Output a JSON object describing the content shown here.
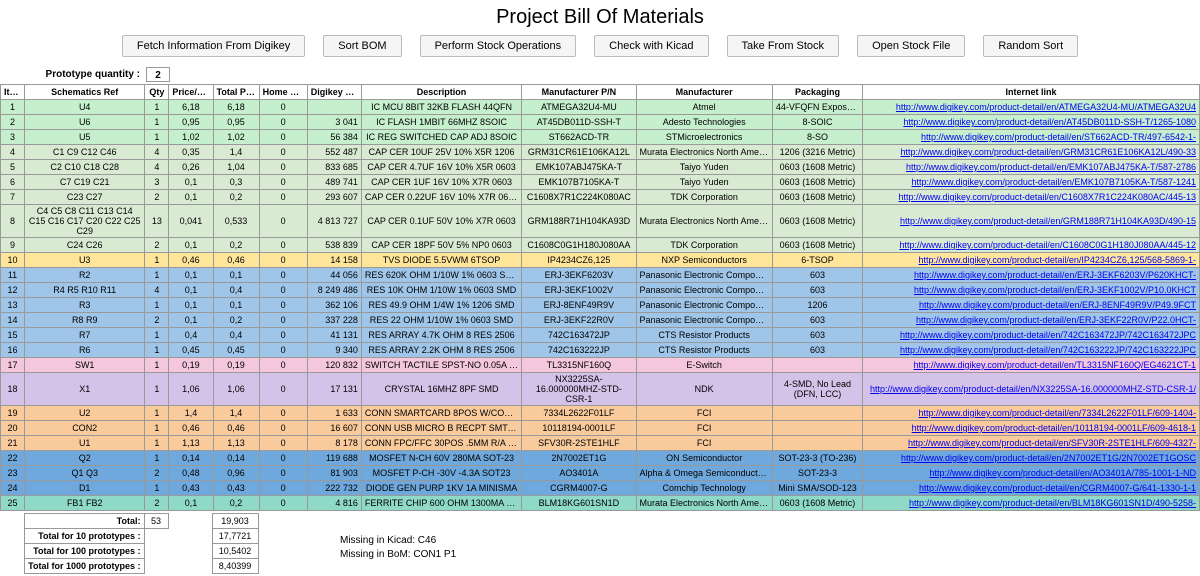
{
  "title": "Project Bill Of Materials",
  "toolbar": {
    "fetch": "Fetch Information From Digikey",
    "sort": "Sort BOM",
    "stockops": "Perform Stock Operations",
    "kicad": "Check with Kicad",
    "take": "Take From Stock",
    "open": "Open Stock File",
    "random": "Random Sort"
  },
  "proto_qty_label": "Prototype quantity :",
  "proto_qty_value": "2",
  "headers": {
    "item": "Item",
    "ref": "Schematics Ref",
    "qty": "Qty",
    "price": "Price/chip",
    "total": "Total Price",
    "home": "Home Stock",
    "dkstock": "Digikey Stock",
    "desc": "Description",
    "mpn": "Manufacturer P/N",
    "mfr": "Manufacturer",
    "pkg": "Packaging",
    "link": "Internet link"
  },
  "col_widths": {
    "item": 24,
    "ref": 120,
    "qty": 24,
    "price": 44,
    "total": 46,
    "home": 48,
    "dkstock": 54,
    "desc": 160,
    "mpn": 114,
    "mfr": 136,
    "pkg": 90,
    "link": 336
  },
  "row_colors": {
    "green": "#c6efce",
    "lightgreen": "#d9ead3",
    "teal": "#8fd9c7",
    "yellow": "#ffe599",
    "blue": "#9fc5e8",
    "purple": "#d5c2e8",
    "orange": "#f9cb9c",
    "pink": "#f4c7dc",
    "darkblue": "#6fa8dc",
    "darkerblue": "#5b9bd5"
  },
  "rows": [
    {
      "n": "1",
      "ref": "U4",
      "qty": "1",
      "price": "6,18",
      "total": "6,18",
      "home": "0",
      "dk": "",
      "desc": "IC MCU 8BIT 32KB FLASH 44QFN",
      "mpn": "ATMEGA32U4-MU",
      "mfr": "Atmel",
      "pkg": "44-VFQFN Exposed Pad",
      "link": "http://www.digikey.com/product-detail/en/ATMEGA32U4-MU/ATMEGA32U4",
      "c": "green"
    },
    {
      "n": "2",
      "ref": "U6",
      "qty": "1",
      "price": "0,95",
      "total": "0,95",
      "home": "0",
      "dk": "3 041",
      "desc": "IC FLASH 1MBIT 66MHZ 8SOIC",
      "mpn": "AT45DB011D-SSH-T",
      "mfr": "Adesto Technologies",
      "pkg": "8-SOIC",
      "link": "http://www.digikey.com/product-detail/en/AT45DB011D-SSH-T/1265-1080",
      "c": "green"
    },
    {
      "n": "3",
      "ref": "U5",
      "qty": "1",
      "price": "1,02",
      "total": "1,02",
      "home": "0",
      "dk": "56 384",
      "desc": "IC REG SWITCHED CAP ADJ 8SOIC",
      "mpn": "ST662ACD-TR",
      "mfr": "STMicroelectronics",
      "pkg": "8-SO",
      "link": "http://www.digikey.com/product-detail/en/ST662ACD-TR/497-6542-1-",
      "c": "green"
    },
    {
      "n": "4",
      "ref": "C1 C9 C12 C46",
      "qty": "4",
      "price": "0,35",
      "total": "1,4",
      "home": "0",
      "dk": "552 487",
      "desc": "CAP CER 10UF 25V 10% X5R 1206",
      "mpn": "GRM31CR61E106KA12L",
      "mfr": "Murata Electronics North America",
      "pkg": "1206 (3216 Metric)",
      "link": "http://www.digikey.com/product-detail/en/GRM31CR61E106KA12L/490-33",
      "c": "lightgreen"
    },
    {
      "n": "5",
      "ref": "C2 C10 C18 C28",
      "qty": "4",
      "price": "0,26",
      "total": "1,04",
      "home": "0",
      "dk": "833 685",
      "desc": "CAP CER 4.7UF 16V 10% X5R 0603",
      "mpn": "EMK107ABJ475KA-T",
      "mfr": "Taiyo Yuden",
      "pkg": "0603 (1608 Metric)",
      "link": "http://www.digikey.com/product-detail/en/EMK107ABJ475KA-T/587-2786",
      "c": "lightgreen"
    },
    {
      "n": "6",
      "ref": "C7 C19 C21",
      "qty": "3",
      "price": "0,1",
      "total": "0,3",
      "home": "0",
      "dk": "489 741",
      "desc": "CAP CER 1UF 16V 10% X7R 0603",
      "mpn": "EMK107B7105KA-T",
      "mfr": "Taiyo Yuden",
      "pkg": "0603 (1608 Metric)",
      "link": "http://www.digikey.com/product-detail/en/EMK107B7105KA-T/587-1241",
      "c": "lightgreen"
    },
    {
      "n": "7",
      "ref": "C23 C27",
      "qty": "2",
      "price": "0,1",
      "total": "0,2",
      "home": "0",
      "dk": "293 607",
      "desc": "CAP CER 0.22UF 16V 10% X7R 0603",
      "mpn": "C1608X7R1C224K080AC",
      "mfr": "TDK Corporation",
      "pkg": "0603 (1608 Metric)",
      "link": "http://www.digikey.com/product-detail/en/C1608X7R1C224K080AC/445-13",
      "c": "lightgreen"
    },
    {
      "n": "8",
      "ref": "C4 C5 C8 C11 C13 C14 C15 C16 C17 C20 C22 C25 C29",
      "qty": "13",
      "price": "0,041",
      "total": "0,533",
      "home": "0",
      "dk": "4 813 727",
      "desc": "CAP CER 0.1UF 50V 10% X7R 0603",
      "mpn": "GRM188R71H104KA93D",
      "mfr": "Murata Electronics North America",
      "pkg": "0603 (1608 Metric)",
      "link": "http://www.digikey.com/product-detail/en/GRM188R71H104KA93D/490-15",
      "c": "lightgreen",
      "tall": true
    },
    {
      "n": "9",
      "ref": "C24 C26",
      "qty": "2",
      "price": "0,1",
      "total": "0,2",
      "home": "0",
      "dk": "538 839",
      "desc": "CAP CER 18PF 50V 5% NP0 0603",
      "mpn": "C1608C0G1H180J080AA",
      "mfr": "TDK Corporation",
      "pkg": "0603 (1608 Metric)",
      "link": "http://www.digikey.com/product-detail/en/C1608C0G1H180J080AA/445-12",
      "c": "lightgreen"
    },
    {
      "n": "10",
      "ref": "U3",
      "qty": "1",
      "price": "0,46",
      "total": "0,46",
      "home": "0",
      "dk": "14 158",
      "desc": "TVS DIODE 5.5VWM 6TSOP",
      "mpn": "IP4234CZ6,125",
      "mfr": "NXP Semiconductors",
      "pkg": "6-TSOP",
      "link": "http://www.digikey.com/product-detail/en/IP4234CZ6,125/568-5869-1-",
      "c": "yellow"
    },
    {
      "n": "11",
      "ref": "R2",
      "qty": "1",
      "price": "0,1",
      "total": "0,1",
      "home": "0",
      "dk": "44 056",
      "desc": "RES 620K OHM 1/10W 1% 0603 SMD",
      "mpn": "ERJ-3EKF6203V",
      "mfr": "Panasonic Electronic Components",
      "pkg": "603",
      "link": "http://www.digikey.com/product-detail/en/ERJ-3EKF6203V/P620KHCT-",
      "c": "blue"
    },
    {
      "n": "12",
      "ref": "R4 R5 R10 R11",
      "qty": "4",
      "price": "0,1",
      "total": "0,4",
      "home": "0",
      "dk": "8 249 486",
      "desc": "RES 10K OHM 1/10W 1% 0603 SMD",
      "mpn": "ERJ-3EKF1002V",
      "mfr": "Panasonic Electronic Components",
      "pkg": "603",
      "link": "http://www.digikey.com/product-detail/en/ERJ-3EKF1002V/P10.0KHCT",
      "c": "blue"
    },
    {
      "n": "13",
      "ref": "R3",
      "qty": "1",
      "price": "0,1",
      "total": "0,1",
      "home": "0",
      "dk": "362 106",
      "desc": "RES 49.9 OHM 1/4W 1% 1206 SMD",
      "mpn": "ERJ-8ENF49R9V",
      "mfr": "Panasonic Electronic Components",
      "pkg": "1206",
      "link": "http://www.digikey.com/product-detail/en/ERJ-8ENF49R9V/P49.9FCT",
      "c": "blue"
    },
    {
      "n": "14",
      "ref": "R8 R9",
      "qty": "2",
      "price": "0,1",
      "total": "0,2",
      "home": "0",
      "dk": "337 228",
      "desc": "RES 22 OHM 1/10W 1% 0603 SMD",
      "mpn": "ERJ-3EKF22R0V",
      "mfr": "Panasonic Electronic Components",
      "pkg": "603",
      "link": "http://www.digikey.com/product-detail/en/ERJ-3EKF22R0V/P22.0HCT-",
      "c": "blue"
    },
    {
      "n": "15",
      "ref": "R7",
      "qty": "1",
      "price": "0,4",
      "total": "0,4",
      "home": "0",
      "dk": "41 131",
      "desc": "RES ARRAY 4.7K OHM 8 RES 2506",
      "mpn": "742C163472JP",
      "mfr": "CTS Resistor Products",
      "pkg": "603",
      "link": "http://www.digikey.com/product-detail/en/742C163472JP/742C163472JPC",
      "c": "blue"
    },
    {
      "n": "16",
      "ref": "R6",
      "qty": "1",
      "price": "0,45",
      "total": "0,45",
      "home": "0",
      "dk": "9 340",
      "desc": "RES ARRAY 2.2K OHM 8 RES 2506",
      "mpn": "742C163222JP",
      "mfr": "CTS Resistor Products",
      "pkg": "603",
      "link": "http://www.digikey.com/product-detail/en/742C163222JP/742C163222JPC",
      "c": "blue"
    },
    {
      "n": "17",
      "ref": "SW1",
      "qty": "1",
      "price": "0,19",
      "total": "0,19",
      "home": "0",
      "dk": "120 832",
      "desc": "SWITCH TACTILE SPST-NO 0.05A 15V",
      "mpn": "TL3315NF160Q",
      "mfr": "E-Switch",
      "pkg": "",
      "link": "http://www.digikey.com/product-detail/en/TL3315NF160Q/EG4621CT-1",
      "c": "pink"
    },
    {
      "n": "18",
      "ref": "X1",
      "qty": "1",
      "price": "1,06",
      "total": "1,06",
      "home": "0",
      "dk": "17 131",
      "desc": "CRYSTAL 16MHZ 8PF SMD",
      "mpn": "NX3225SA-16.000000MHZ-STD-CSR-1",
      "mfr": "NDK",
      "pkg": "4-SMD, No Lead (DFN, LCC)",
      "link": "http://www.digikey.com/product-detail/en/NX3225SA-16.000000MHZ-STD-CSR-1/",
      "c": "purple",
      "tall": true
    },
    {
      "n": "19",
      "ref": "U2",
      "qty": "1",
      "price": "1,4",
      "total": "1,4",
      "home": "0",
      "dk": "1 633",
      "desc": "CONN SMARTCARD 8POS W/COVER PCB",
      "mpn": "7334L2622F01LF",
      "mfr": "FCI",
      "pkg": "",
      "link": "http://www.digikey.com/product-detail/en/7334L2622F01LF/609-1404-",
      "c": "orange"
    },
    {
      "n": "20",
      "ref": "CON2",
      "qty": "1",
      "price": "0,46",
      "total": "0,46",
      "home": "0",
      "dk": "16 607",
      "desc": "CONN USB MICRO B RECPT SMT R/A",
      "mpn": "10118194-0001LF",
      "mfr": "FCI",
      "pkg": "",
      "link": "http://www.digikey.com/product-detail/en/10118194-0001LF/609-4618-1",
      "c": "orange"
    },
    {
      "n": "21",
      "ref": "U1",
      "qty": "1",
      "price": "1,13",
      "total": "1,13",
      "home": "0",
      "dk": "8 178",
      "desc": "CONN FPC/FFC 30POS .5MM R/A SMD",
      "mpn": "SFV30R-2STE1HLF",
      "mfr": "FCI",
      "pkg": "",
      "link": "http://www.digikey.com/product-detail/en/SFV30R-2STE1HLF/609-4327-",
      "c": "orange"
    },
    {
      "n": "22",
      "ref": "Q2",
      "qty": "1",
      "price": "0,14",
      "total": "0,14",
      "home": "0",
      "dk": "119 688",
      "desc": "MOSFET N-CH 60V 280MA SOT-23",
      "mpn": "2N7002ET1G",
      "mfr": "ON Semiconductor",
      "pkg": "SOT-23-3 (TO-236)",
      "link": "http://www.digikey.com/product-detail/en/2N7002ET1G/2N7002ET1GOSC",
      "c": "darkblue"
    },
    {
      "n": "23",
      "ref": "Q1 Q3",
      "qty": "2",
      "price": "0,48",
      "total": "0,96",
      "home": "0",
      "dk": "81 903",
      "desc": "MOSFET P-CH -30V -4.3A SOT23",
      "mpn": "AO3401A",
      "mfr": "Alpha &amp; Omega Semiconductor Inc",
      "pkg": "SOT-23-3",
      "link": "http://www.digikey.com/product-detail/en/AO3401A/785-1001-1-ND",
      "c": "darkblue"
    },
    {
      "n": "24",
      "ref": "D1",
      "qty": "1",
      "price": "0,43",
      "total": "0,43",
      "home": "0",
      "dk": "222 732",
      "desc": "DIODE GEN PURP 1KV 1A MINISMA",
      "mpn": "CGRM4007-G",
      "mfr": "Comchip Technology",
      "pkg": "Mini SMA/SOD-123",
      "link": "http://www.digikey.com/product-detail/en/CGRM4007-G/641-1330-1-1",
      "c": "darkblue"
    },
    {
      "n": "25",
      "ref": "FB1 FB2",
      "qty": "2",
      "price": "0,1",
      "total": "0,2",
      "home": "0",
      "dk": "4 816",
      "desc": "FERRITE CHIP 600 OHM 1300MA 0603",
      "mpn": "BLM18KG601SN1D",
      "mfr": "Murata Electronics North America",
      "pkg": "0603 (1608 Metric)",
      "link": "http://www.digikey.com/product-detail/en/BLM18KG601SN1D/490-5258-",
      "c": "teal"
    }
  ],
  "totals": {
    "label": "Total:",
    "qty": "53",
    "total": "19,903",
    "proto10_label": "Total for 10 prototypes :",
    "proto10_val": "17,7721",
    "proto100_label": "Total for 100 prototypes :",
    "proto100_val": "10,5402",
    "proto1000_label": "Total for 1000 prototypes :",
    "proto1000_val": "8,40399"
  },
  "notes": {
    "kicad": "Missing in Kicad: C46",
    "bom": "Missing in BoM: CON1 P1"
  }
}
